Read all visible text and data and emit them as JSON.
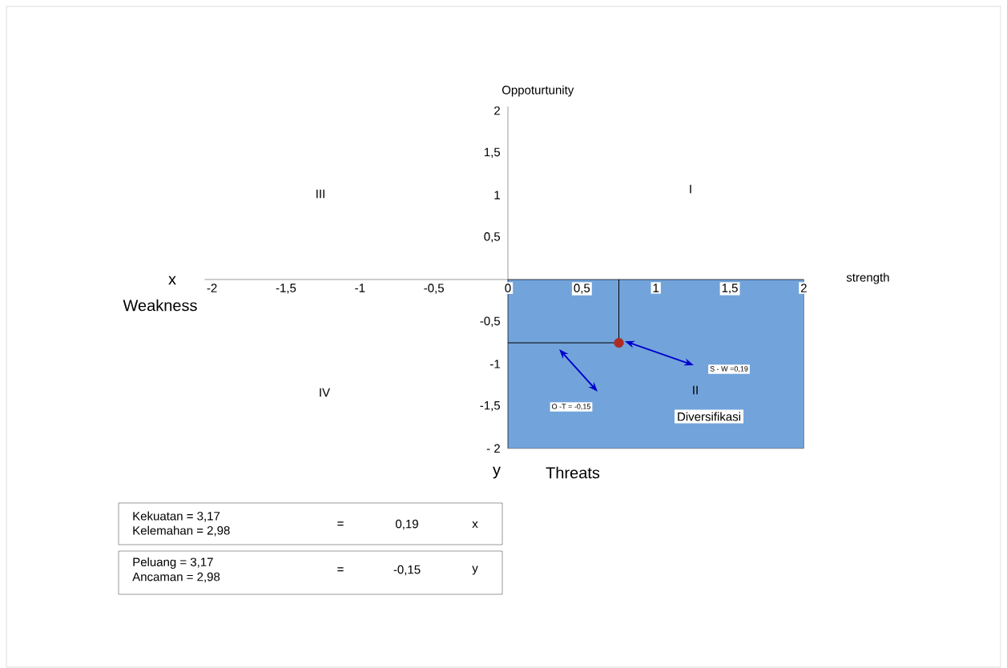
{
  "chart_data": {
    "type": "scatter",
    "xlabel": "strength",
    "ylabel": "Oppoturtunity",
    "series": [
      {
        "type": "area",
        "x": [
          0,
          2
        ],
        "values": [
          -2,
          -2
        ],
        "color": "#72a4db"
      },
      {
        "type": "line",
        "x": [
          0,
          0.75,
          0.75
        ],
        "values": [
          -0.75,
          -0.75,
          0
        ],
        "color": "#000000"
      },
      {
        "type": "scatter",
        "x": [
          0.75
        ],
        "values": [
          -0.75
        ],
        "color": "#b22a22",
        "marker": "circle"
      }
    ],
    "xlim": [
      -2.05,
      2
    ],
    "ylim": [
      -2,
      2.05
    ],
    "xticks": [
      -2,
      {
        "value": -1.5,
        "label": "-1,5"
      },
      -1,
      {
        "value": -0.5,
        "label": "-0,5"
      },
      0,
      {
        "value": 0.5,
        "label": "0,5"
      },
      1,
      {
        "value": 1.5,
        "label": "1,5"
      },
      2
    ],
    "yticks": [
      {
        "value": -2,
        "label": "- 2"
      },
      {
        "value": -1.5,
        "label": "-1,5"
      },
      -1,
      {
        "value": -0.5,
        "label": "-0,5"
      },
      {
        "value": 0.5,
        "label": "0,5"
      },
      1,
      {
        "value": 1.5,
        "label": "1,5"
      },
      2
    ],
    "grid": false,
    "annotations": [
      "x",
      "Weakness",
      "y",
      "Threats",
      "I",
      "II",
      "III",
      "IV",
      "Diversifikasi",
      "S - W =0,19",
      "O -T = -0,15",
      "Kekuatan    = 3,17",
      "Kelemahan = 2,98",
      "=",
      "0,19",
      "x",
      "Peluang    = 3,17",
      "Ancaman = 2,98",
      "=",
      "-0,15",
      "y"
    ]
  }
}
